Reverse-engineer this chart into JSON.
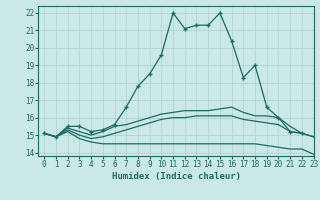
{
  "title": "",
  "xlabel": "Humidex (Indice chaleur)",
  "xlim": [
    -0.5,
    23
  ],
  "ylim": [
    13.8,
    22.4
  ],
  "yticks": [
    14,
    15,
    16,
    17,
    18,
    19,
    20,
    21,
    22
  ],
  "xticks": [
    0,
    1,
    2,
    3,
    4,
    5,
    6,
    7,
    8,
    9,
    10,
    11,
    12,
    13,
    14,
    15,
    16,
    17,
    18,
    19,
    20,
    21,
    22,
    23
  ],
  "bg_color": "#c9e8e6",
  "grid_color": "#b0d4d0",
  "line_color": "#1e6b63",
  "series": [
    {
      "x": [
        0,
        1,
        2,
        3,
        4,
        5,
        6,
        7,
        8,
        9,
        10,
        11,
        12,
        13,
        14,
        15,
        16,
        17,
        18,
        19,
        20,
        21,
        22
      ],
      "y": [
        15.1,
        14.9,
        15.5,
        15.5,
        15.2,
        15.3,
        15.6,
        16.6,
        17.8,
        18.5,
        19.6,
        22.0,
        21.1,
        21.3,
        21.3,
        22.0,
        20.4,
        18.3,
        19.0,
        16.6,
        16.0,
        15.2,
        15.1
      ],
      "marker": "+"
    },
    {
      "x": [
        0,
        1,
        2,
        3,
        4,
        5,
        6,
        7,
        8,
        9,
        10,
        11,
        12,
        13,
        14,
        15,
        16,
        17,
        18,
        19,
        20,
        21,
        22,
        23
      ],
      "y": [
        15.1,
        14.9,
        15.4,
        15.2,
        15.0,
        15.2,
        15.5,
        15.6,
        15.8,
        16.0,
        16.2,
        16.3,
        16.4,
        16.4,
        16.4,
        16.5,
        16.6,
        16.3,
        16.1,
        16.1,
        16.0,
        15.5,
        15.1,
        14.9
      ],
      "marker": null
    },
    {
      "x": [
        0,
        1,
        2,
        3,
        4,
        5,
        6,
        7,
        8,
        9,
        10,
        11,
        12,
        13,
        14,
        15,
        16,
        17,
        18,
        19,
        20,
        21,
        22,
        23
      ],
      "y": [
        15.1,
        14.9,
        15.2,
        14.8,
        14.6,
        14.5,
        14.5,
        14.5,
        14.5,
        14.5,
        14.5,
        14.5,
        14.5,
        14.5,
        14.5,
        14.5,
        14.5,
        14.5,
        14.5,
        14.4,
        14.3,
        14.2,
        14.2,
        13.9
      ],
      "marker": null
    },
    {
      "x": [
        0,
        1,
        2,
        3,
        4,
        5,
        6,
        7,
        8,
        9,
        10,
        11,
        12,
        13,
        14,
        15,
        16,
        17,
        18,
        19,
        20,
        21,
        22,
        23
      ],
      "y": [
        15.1,
        14.9,
        15.3,
        15.0,
        14.8,
        14.9,
        15.1,
        15.3,
        15.5,
        15.7,
        15.9,
        16.0,
        16.0,
        16.1,
        16.1,
        16.1,
        16.1,
        15.9,
        15.8,
        15.7,
        15.6,
        15.2,
        15.1,
        14.9
      ],
      "marker": null
    }
  ]
}
